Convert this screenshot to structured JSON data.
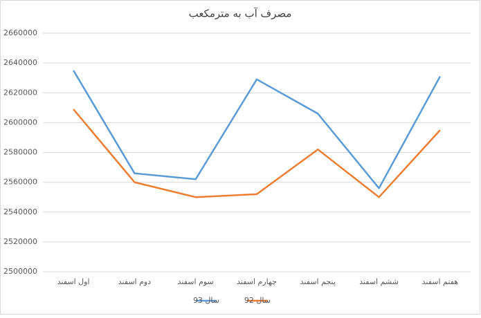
{
  "chart_data": {
    "type": "line",
    "title": "مصرف آب به مترمکعب",
    "categories": [
      "اول اسفند",
      "دوم اسفند",
      "سوم اسفند",
      "چهارم اسفند",
      "پنجم اسفند",
      "ششم اسفند",
      "هفتم اسفند"
    ],
    "series": [
      {
        "name": "سال 93",
        "color": "#5b9bd5",
        "values": [
          2635000,
          2566000,
          2562000,
          2629000,
          2606000,
          2556000,
          2631000
        ]
      },
      {
        "name": "سال 92",
        "color": "#ed7d31",
        "values": [
          2609000,
          2560000,
          2550000,
          2552000,
          2582000,
          2550000,
          2595000
        ]
      }
    ],
    "ylim": [
      2500000,
      2660000
    ],
    "yticks": [
      2500000,
      2520000,
      2540000,
      2560000,
      2580000,
      2600000,
      2620000,
      2640000,
      2660000
    ],
    "grid": true,
    "legend": "bottom"
  }
}
